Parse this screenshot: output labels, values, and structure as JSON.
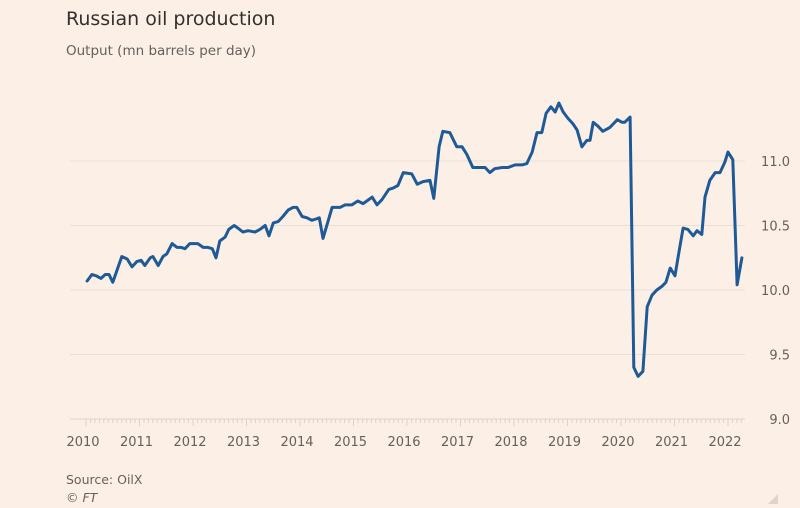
{
  "chart_data": {
    "type": "line",
    "title": "Russian oil production",
    "subtitle": "Output (mn barrels per day)",
    "xlabel": "",
    "ylabel": "Output (mn barrels per day)",
    "xlim": [
      2010,
      2022.3
    ],
    "ylim": [
      9.0,
      11.45
    ],
    "grid": true,
    "x_ticks": [
      "2010",
      "2011",
      "2012",
      "2013",
      "2014",
      "2015",
      "2016",
      "2017",
      "2018",
      "2019",
      "2020",
      "2021",
      "2022"
    ],
    "y_ticks": [
      "9.0",
      "9.5",
      "10.0",
      "10.5",
      "11.0"
    ],
    "series": [
      {
        "name": "Russian oil production",
        "color": "#1f5a96",
        "x": [
          2010.02,
          2010.11,
          2010.19,
          2010.28,
          2010.36,
          2010.43,
          2010.5,
          2010.67,
          2010.77,
          2010.86,
          2010.95,
          2011.03,
          2011.1,
          2011.2,
          2011.25,
          2011.35,
          2011.44,
          2011.51,
          2011.61,
          2011.7,
          2011.78,
          2011.85,
          2011.94,
          2012.04,
          2012.09,
          2012.19,
          2012.28,
          2012.36,
          2012.43,
          2012.5,
          2012.6,
          2012.67,
          2012.77,
          2012.84,
          2012.93,
          2013.03,
          2013.16,
          2013.25,
          2013.35,
          2013.42,
          2013.5,
          2013.59,
          2013.68,
          2013.78,
          2013.87,
          2013.94,
          2014.04,
          2014.13,
          2014.22,
          2014.3,
          2014.36,
          2014.43,
          2014.6,
          2014.75,
          2014.84,
          2014.97,
          2015.08,
          2015.18,
          2015.35,
          2015.44,
          2015.53,
          2015.66,
          2015.74,
          2015.83,
          2015.93,
          2016.09,
          2016.19,
          2016.3,
          2016.43,
          2016.5,
          2016.6,
          2016.67,
          2016.8,
          2016.93,
          2017.03,
          2017.12,
          2017.23,
          2017.36,
          2017.46,
          2017.55,
          2017.64,
          2017.78,
          2017.89,
          2018.02,
          2018.15,
          2018.24,
          2018.34,
          2018.43,
          2018.52,
          2018.6,
          2018.69,
          2018.77,
          2018.84,
          2018.92,
          2019.01,
          2019.1,
          2019.18,
          2019.27,
          2019.36,
          2019.42,
          2019.48,
          2019.57,
          2019.66,
          2019.79,
          2019.93,
          2020.02,
          2020.07,
          2020.17,
          2020.24,
          2020.32,
          2020.41,
          2020.49,
          2020.58,
          2020.67,
          2020.77,
          2020.84,
          2020.92,
          2021.01,
          2021.07,
          2021.16,
          2021.25,
          2021.35,
          2021.42,
          2021.51,
          2021.57,
          2021.66,
          2021.76,
          2021.85,
          2021.94,
          2022.0,
          2022.09,
          2022.17,
          2022.26
        ],
        "y": [
          10.07,
          10.12,
          10.11,
          10.09,
          10.12,
          10.12,
          10.06,
          10.26,
          10.24,
          10.18,
          10.22,
          10.23,
          10.19,
          10.25,
          10.26,
          10.19,
          10.26,
          10.28,
          10.36,
          10.33,
          10.33,
          10.32,
          10.36,
          10.36,
          10.36,
          10.33,
          10.33,
          10.32,
          10.25,
          10.38,
          10.41,
          10.47,
          10.5,
          10.48,
          10.45,
          10.46,
          10.45,
          10.47,
          10.5,
          10.42,
          10.52,
          10.53,
          10.57,
          10.62,
          10.64,
          10.64,
          10.57,
          10.56,
          10.54,
          10.55,
          10.56,
          10.4,
          10.64,
          10.64,
          10.66,
          10.66,
          10.69,
          10.67,
          10.72,
          10.66,
          10.7,
          10.78,
          10.79,
          10.81,
          10.91,
          10.9,
          10.82,
          10.84,
          10.85,
          10.71,
          11.11,
          11.23,
          11.22,
          11.11,
          11.11,
          11.05,
          10.95,
          10.95,
          10.95,
          10.91,
          10.94,
          10.95,
          10.95,
          10.97,
          10.97,
          10.98,
          11.07,
          11.22,
          11.22,
          11.37,
          11.42,
          11.38,
          11.45,
          11.38,
          11.33,
          11.29,
          11.24,
          11.11,
          11.16,
          11.16,
          11.3,
          11.27,
          11.23,
          11.26,
          11.32,
          11.3,
          11.3,
          11.34,
          9.4,
          9.33,
          9.37,
          9.87,
          9.96,
          10.0,
          10.03,
          10.06,
          10.17,
          10.11,
          10.26,
          10.48,
          10.47,
          10.42,
          10.46,
          10.43,
          10.72,
          10.85,
          10.91,
          10.91,
          10.99,
          11.07,
          11.01,
          10.04,
          10.25
        ]
      }
    ],
    "source": "Source: OilX",
    "copyright": "© FT"
  }
}
